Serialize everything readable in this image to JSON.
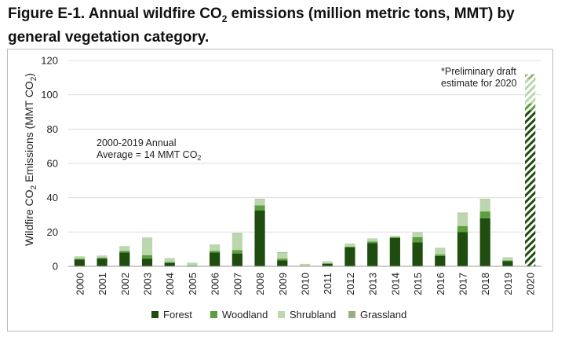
{
  "figure": {
    "title_pre": "Figure E-1. Annual wildfire CO",
    "title_sub": "2",
    "title_post": " emissions (million metric tons, MMT) by general vegetation category."
  },
  "chart_data": {
    "type": "bar",
    "stacked": true,
    "categories": [
      "2000",
      "2001",
      "2002",
      "2003",
      "2004",
      "2005",
      "2006",
      "2007",
      "2008",
      "2009",
      "2010",
      "2011",
      "2012",
      "2013",
      "2014",
      "2015",
      "2016",
      "2017",
      "2018",
      "2019",
      "2020"
    ],
    "series": [
      {
        "name": "Forest",
        "color": "#1e4d0f",
        "values": [
          4,
          4.5,
          8,
          4.5,
          2,
          0.3,
          8,
          7.5,
          32.5,
          3.5,
          0.2,
          1.5,
          11,
          13.5,
          16.5,
          14,
          6,
          20,
          28,
          3,
          91
        ]
      },
      {
        "name": "Woodland",
        "color": "#5c9f3e",
        "values": [
          0.5,
          0.5,
          1,
          2,
          0.5,
          0.2,
          1,
          2,
          3,
          1,
          0.1,
          0.3,
          0.5,
          1,
          0.5,
          3,
          1,
          3.5,
          4,
          0.5,
          4
        ]
      },
      {
        "name": "Shrubland",
        "color": "#bcd6ae",
        "values": [
          1,
          1,
          2.5,
          10,
          2,
          1.5,
          3.5,
          9.5,
          3.5,
          3.5,
          1,
          1,
          1.5,
          1.5,
          0.5,
          2.5,
          3.5,
          7.5,
          7,
          1.5,
          14
        ]
      },
      {
        "name": "Grassland",
        "color": "#98b07e",
        "values": [
          0.2,
          0.2,
          0.2,
          0.2,
          0.2,
          0.1,
          0.2,
          0.3,
          0.3,
          0.3,
          0.1,
          0.1,
          0.2,
          0.2,
          0.2,
          0.2,
          0.2,
          0.3,
          0.3,
          0.2,
          3
        ]
      }
    ],
    "hatched_categories": [
      "2020"
    ],
    "ylabel_pre": "Wildfire CO",
    "ylabel_sub": "2",
    "ylabel_post": " Emissions (MMT CO",
    "ylabel_sub2": "2",
    "ylabel_end": ")",
    "ylim": [
      0,
      120
    ],
    "yticks": [
      0,
      20,
      40,
      60,
      80,
      100,
      120
    ],
    "grid": true,
    "legend_position": "bottom",
    "annotations": {
      "average_line1": "2000-2019 Annual",
      "average_line2_pre": "Average = 14 MMT CO",
      "average_line2_sub": "2",
      "prelim_line1": "*Preliminary draft",
      "prelim_line2": "estimate for 2020"
    }
  }
}
